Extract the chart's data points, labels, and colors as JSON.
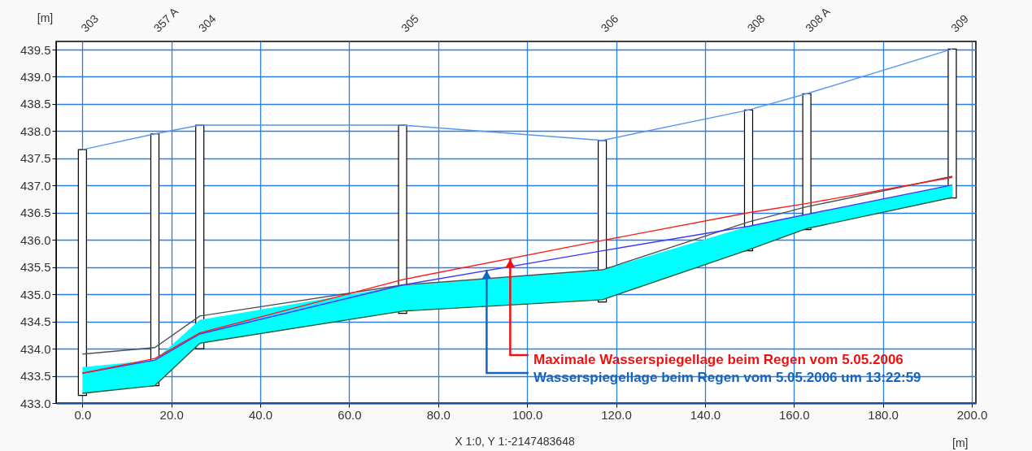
{
  "chart_data": {
    "type": "line",
    "x": [
      0,
      16.3,
      26.4,
      72.0,
      116.9,
      149.8,
      162.9,
      195.6
    ],
    "series": [
      {
        "type": "bar",
        "color": "#ffffff",
        "base": [
          433.14,
          433.32,
          434.0,
          434.65,
          434.86,
          435.8,
          436.19,
          436.77
        ],
        "values": [
          4.52,
          4.63,
          4.11,
          3.46,
          2.97,
          2.59,
          2.5,
          2.74
        ]
      },
      {
        "color": "#5b95ee",
        "values": [
          437.66,
          437.95,
          438.11,
          438.11,
          437.83,
          438.39,
          438.69,
          439.51
        ]
      },
      {
        "type": "line",
        "color": "#1e5a2e",
        "values": [
          433.18,
          433.32,
          434.1,
          434.69,
          434.9,
          435.82,
          436.21,
          436.78
        ],
        "lower": [
          433.18,
          433.32,
          434.1,
          434.69,
          434.9,
          435.82,
          436.21,
          436.78
        ],
        "upper": [
          433.66,
          433.79,
          434.53,
          435.16,
          435.45,
          436.25,
          436.46,
          437.01
        ]
      },
      {
        "color": "#505050",
        "values": [
          433.9,
          434.02,
          434.6,
          435.17,
          435.45,
          436.33,
          436.61,
          437.17
        ]
      },
      {
        "color": "#3a3aff",
        "values": [
          433.55,
          433.79,
          434.27,
          435.17,
          435.8,
          436.25,
          436.47,
          437.01
        ]
      },
      {
        "color": "#ff1a1a",
        "values": [
          433.55,
          433.82,
          434.29,
          435.27,
          435.99,
          436.5,
          436.67,
          437.15
        ]
      }
    ],
    "xlim": [
      -5,
      200
    ],
    "ylim": [
      433.0,
      439.65
    ],
    "xticks": [
      {
        "value": 0,
        "label": "0.0"
      },
      {
        "value": 20,
        "label": "20.0"
      },
      {
        "value": 40,
        "label": "40.0"
      },
      {
        "value": 60,
        "label": "60.0"
      },
      {
        "value": 80,
        "label": "80.0"
      },
      {
        "value": 100,
        "label": "100.0"
      },
      {
        "value": 120,
        "label": "120.0"
      },
      {
        "value": 140,
        "label": "140.0"
      },
      {
        "value": 160,
        "label": "160.0"
      },
      {
        "value": 180,
        "label": "180.0"
      },
      {
        "value": 200,
        "label": "200.0"
      }
    ],
    "yticks": [
      {
        "value": 433,
        "label": "433.0"
      },
      433.5,
      {
        "value": 434,
        "label": "434.0"
      },
      434.5,
      {
        "value": 435,
        "label": "435.0"
      },
      435.5,
      {
        "value": 436,
        "label": "436.0"
      },
      436.5,
      {
        "value": 437,
        "label": "437.0"
      },
      437.5,
      {
        "value": 438,
        "label": "438.0"
      },
      438.5,
      {
        "value": 439,
        "label": "439.0"
      },
      439.5
    ],
    "xlabel": "[m]",
    "ylabel": "[m]",
    "annotations": [
      "303",
      "357 A",
      "304",
      "305",
      "306",
      "308",
      "308 A",
      "309",
      {
        "text": "Maximale Wasserspiegellage beim Regen vom 5.05.2006",
        "x": 96.2,
        "y": 435.66
      },
      {
        "text": "Wasserspiegellage beim Regen vom 5.05.2006 um 13:22:59",
        "x": 90.9,
        "y": 435.45
      },
      "X 1:0, Y 1:-2147483648"
    ],
    "grid": true,
    "marker": "none",
    "line_style": "solid"
  }
}
